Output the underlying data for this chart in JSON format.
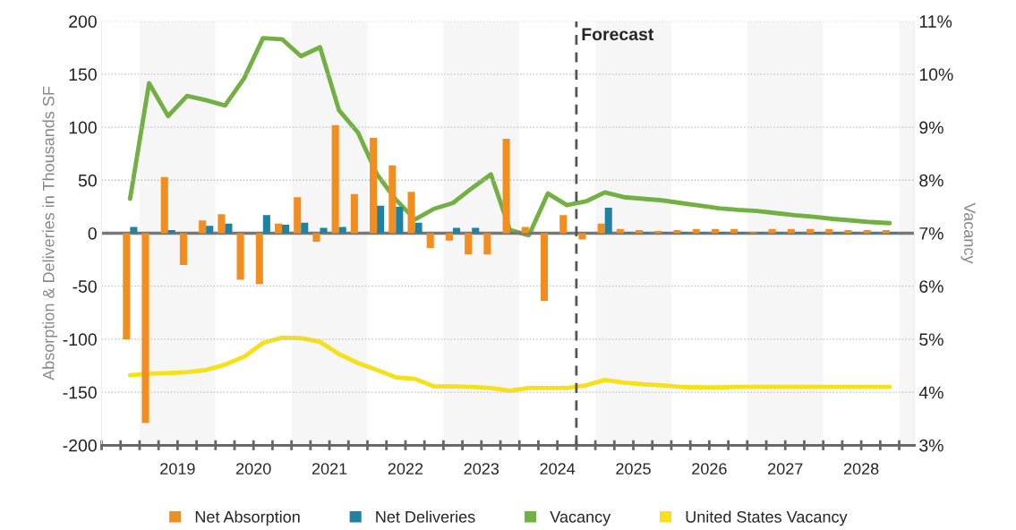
{
  "chart_data": {
    "type": "bar",
    "ylabel": "Absorption & Deliveries in Thousands SF",
    "y2label": "Vacancy",
    "x": [
      2018.875,
      2019.125,
      2019.375,
      2019.625,
      2019.875,
      2020.125,
      2020.375,
      2020.625,
      2020.875,
      2021.125,
      2021.375,
      2021.625,
      2021.875,
      2022.125,
      2022.375,
      2022.625,
      2022.875,
      2023.125,
      2023.375,
      2023.625,
      2023.875,
      2024.125,
      2024.375,
      2024.625,
      2024.875,
      2025.125,
      2025.375,
      2025.625,
      2025.875,
      2026.125,
      2026.375,
      2026.625,
      2026.875,
      2027.125,
      2027.375,
      2027.625,
      2027.875,
      2028.125,
      2028.375,
      2028.625,
      2028.875
    ],
    "series": [
      {
        "name": "Net Absorption",
        "color": "#f28e1f",
        "values": [
          -100,
          -179,
          53,
          -30,
          12,
          18,
          -44,
          -48,
          9,
          34,
          -8,
          102,
          37,
          90,
          64,
          39,
          -14,
          -7,
          -20,
          -20,
          89,
          6,
          -64,
          17,
          -6,
          9,
          4,
          3,
          2,
          3,
          4,
          4,
          4,
          1,
          4,
          4,
          4,
          4,
          3,
          3,
          3
        ]
      },
      {
        "name": "Net Deliveries",
        "color": "#1f82a0",
        "values": [
          6,
          null,
          3,
          null,
          7,
          9,
          null,
          17,
          8,
          10,
          5,
          6,
          null,
          26,
          25,
          10,
          null,
          5,
          5,
          null,
          null,
          null,
          null,
          null,
          null,
          24,
          1,
          1,
          1,
          1,
          1,
          1,
          1,
          1,
          1,
          1,
          1,
          1,
          1,
          1,
          1
        ]
      },
      {
        "name": "Vacancy",
        "type": "line",
        "axis": "y2",
        "color": "#72b043",
        "values": [
          7.65,
          9.83,
          9.21,
          9.59,
          9.51,
          9.41,
          9.92,
          10.68,
          10.66,
          10.34,
          10.51,
          9.32,
          8.9,
          8.11,
          7.63,
          7.26,
          7.46,
          7.57,
          7.85,
          8.11,
          7.06,
          6.96,
          7.75,
          7.53,
          7.6,
          7.77,
          7.68,
          7.65,
          7.62,
          7.57,
          7.52,
          7.47,
          7.44,
          7.42,
          7.38,
          7.34,
          7.31,
          7.27,
          7.24,
          7.21,
          7.19
        ]
      },
      {
        "name": "United States Vacancy",
        "type": "line",
        "axis": "y2",
        "color": "#f5e11a",
        "values": [
          4.32,
          4.35,
          4.36,
          4.38,
          4.42,
          4.52,
          4.67,
          4.93,
          5.03,
          5.02,
          4.95,
          4.72,
          4.55,
          4.42,
          4.28,
          4.25,
          4.11,
          4.11,
          4.1,
          4.08,
          4.03,
          4.08,
          4.08,
          4.08,
          4.13,
          4.23,
          4.18,
          4.15,
          4.13,
          4.1,
          4.09,
          4.09,
          4.1,
          4.1,
          4.1,
          4.1,
          4.1,
          4.1,
          4.1,
          4.1,
          4.1
        ]
      }
    ],
    "xlim": [
      2018.5,
      2029.2
    ],
    "xticks": [
      {
        "value": 2018.5,
        "label": null
      },
      {
        "value": 2018.75,
        "label": null
      },
      {
        "value": 2019,
        "label": null
      },
      {
        "value": 2019.25,
        "label": null
      },
      {
        "value": 2019.5,
        "label": "2019"
      },
      {
        "value": 2019.75,
        "label": null
      },
      {
        "value": 2020,
        "label": null
      },
      {
        "value": 2020.25,
        "label": null
      },
      {
        "value": 2020.5,
        "label": "2020"
      },
      {
        "value": 2020.75,
        "label": null
      },
      {
        "value": 2021,
        "label": null
      },
      {
        "value": 2021.25,
        "label": null
      },
      {
        "value": 2021.5,
        "label": "2021"
      },
      {
        "value": 2021.75,
        "label": null
      },
      {
        "value": 2022,
        "label": null
      },
      {
        "value": 2022.25,
        "label": null
      },
      {
        "value": 2022.5,
        "label": "2022"
      },
      {
        "value": 2022.75,
        "label": null
      },
      {
        "value": 2023,
        "label": null
      },
      {
        "value": 2023.25,
        "label": null
      },
      {
        "value": 2023.5,
        "label": "2023"
      },
      {
        "value": 2023.75,
        "label": null
      },
      {
        "value": 2024,
        "label": null
      },
      {
        "value": 2024.25,
        "label": null
      },
      {
        "value": 2024.5,
        "label": "2024"
      },
      {
        "value": 2024.75,
        "label": null
      },
      {
        "value": 2025,
        "label": null
      },
      {
        "value": 2025.25,
        "label": null
      },
      {
        "value": 2025.5,
        "label": "2025"
      },
      {
        "value": 2025.75,
        "label": null
      },
      {
        "value": 2026,
        "label": null
      },
      {
        "value": 2026.25,
        "label": null
      },
      {
        "value": 2026.5,
        "label": "2026"
      },
      {
        "value": 2026.75,
        "label": null
      },
      {
        "value": 2027,
        "label": null
      },
      {
        "value": 2027.25,
        "label": null
      },
      {
        "value": 2027.5,
        "label": "2027"
      },
      {
        "value": 2027.75,
        "label": null
      },
      {
        "value": 2028,
        "label": null
      },
      {
        "value": 2028.25,
        "label": null
      },
      {
        "value": 2028.5,
        "label": "2028"
      },
      {
        "value": 2028.75,
        "label": null
      },
      {
        "value": 2029,
        "label": null
      }
    ],
    "ylim": [
      -200,
      200
    ],
    "yticks": [
      -200,
      -150,
      -100,
      -50,
      0,
      50,
      100,
      150,
      200
    ],
    "y2lim": [
      3,
      11
    ],
    "y2ticks": [
      {
        "value": 3,
        "label": "3%"
      },
      {
        "value": 4,
        "label": "4%"
      },
      {
        "value": 5,
        "label": "5%"
      },
      {
        "value": 6,
        "label": "6%"
      },
      {
        "value": 7,
        "label": "7%"
      },
      {
        "value": 8,
        "label": "8%"
      },
      {
        "value": 9,
        "label": "9%"
      },
      {
        "value": 10,
        "label": "10%"
      },
      {
        "value": 11,
        "label": "11%"
      }
    ],
    "ref_lines": [
      {
        "axis": "x",
        "value": 2024.75,
        "label": "Forecast",
        "color": "#555555",
        "line_style": "dashed"
      },
      {
        "axis": "y",
        "value": 0,
        "label": null,
        "color": "#777777",
        "line_style": "solid"
      }
    ],
    "bands": [
      {
        "axis": "x",
        "from": 2019,
        "to": 2020,
        "label": null,
        "color": "#f6f6f6"
      },
      {
        "axis": "x",
        "from": 2021,
        "to": 2022,
        "label": null,
        "color": "#f6f6f6"
      },
      {
        "axis": "x",
        "from": 2023,
        "to": 2024,
        "label": null,
        "color": "#f6f6f6"
      },
      {
        "axis": "x",
        "from": 2025,
        "to": 2026,
        "label": null,
        "color": "#f6f6f6"
      },
      {
        "axis": "x",
        "from": 2027,
        "to": 2028,
        "label": null,
        "color": "#f6f6f6"
      },
      {
        "axis": "x",
        "from": 2029,
        "to": 2029.2,
        "label": null,
        "color": "#f6f6f6"
      }
    ],
    "grid": "y",
    "legend": "bottom",
    "marker": "none",
    "line_style": "solid"
  }
}
